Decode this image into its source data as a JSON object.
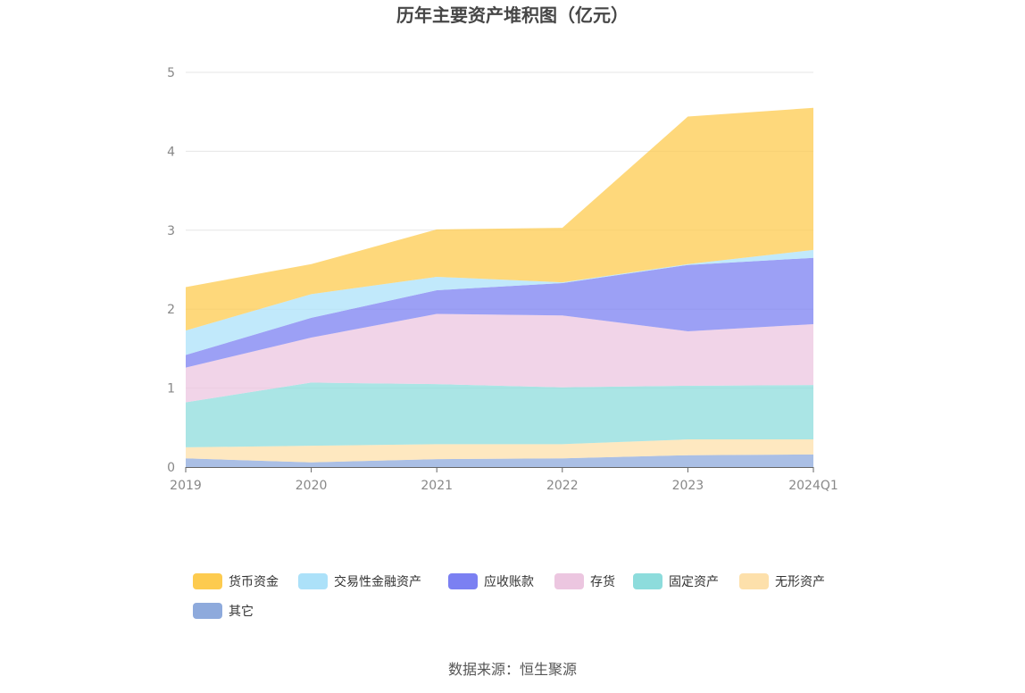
{
  "chart_data": {
    "type": "area",
    "stacked": true,
    "title": "历年主要资产堆积图（亿元）",
    "categories": [
      "2019",
      "2020",
      "2021",
      "2022",
      "2023",
      "2024Q1"
    ],
    "ylim": [
      0,
      5
    ],
    "yticks": [
      "0",
      "1",
      "2",
      "3",
      "4",
      "5"
    ],
    "grid": true,
    "legend_position": "bottom",
    "series": [
      {
        "name": "其它",
        "color": "#8eaadc",
        "values": [
          0.11,
          0.06,
          0.1,
          0.11,
          0.15,
          0.16
        ]
      },
      {
        "name": "无形资产",
        "color": "#fde0ab",
        "values": [
          0.14,
          0.21,
          0.19,
          0.18,
          0.2,
          0.19
        ]
      },
      {
        "name": "固定资产",
        "color": "#8ddcdc",
        "values": [
          0.57,
          0.8,
          0.76,
          0.72,
          0.68,
          0.69
        ]
      },
      {
        "name": "存货",
        "color": "#ecc6e0",
        "values": [
          0.44,
          0.57,
          0.89,
          0.91,
          0.69,
          0.77
        ]
      },
      {
        "name": "应收账款",
        "color": "#7b80f2",
        "values": [
          0.16,
          0.25,
          0.3,
          0.41,
          0.84,
          0.84
        ]
      },
      {
        "name": "交易性金融资产",
        "color": "#ace1f9",
        "values": [
          0.31,
          0.3,
          0.17,
          0.01,
          0.01,
          0.1
        ]
      },
      {
        "name": "货币资金",
        "color": "#fdcb4f",
        "values": [
          0.55,
          0.38,
          0.6,
          0.69,
          1.87,
          1.8
        ]
      }
    ],
    "legend_order": [
      "货币资金",
      "交易性金融资产",
      "应收账款",
      "存货",
      "固定资产",
      "无形资产",
      "其它"
    ]
  },
  "source_text": "数据来源：恒生聚源"
}
